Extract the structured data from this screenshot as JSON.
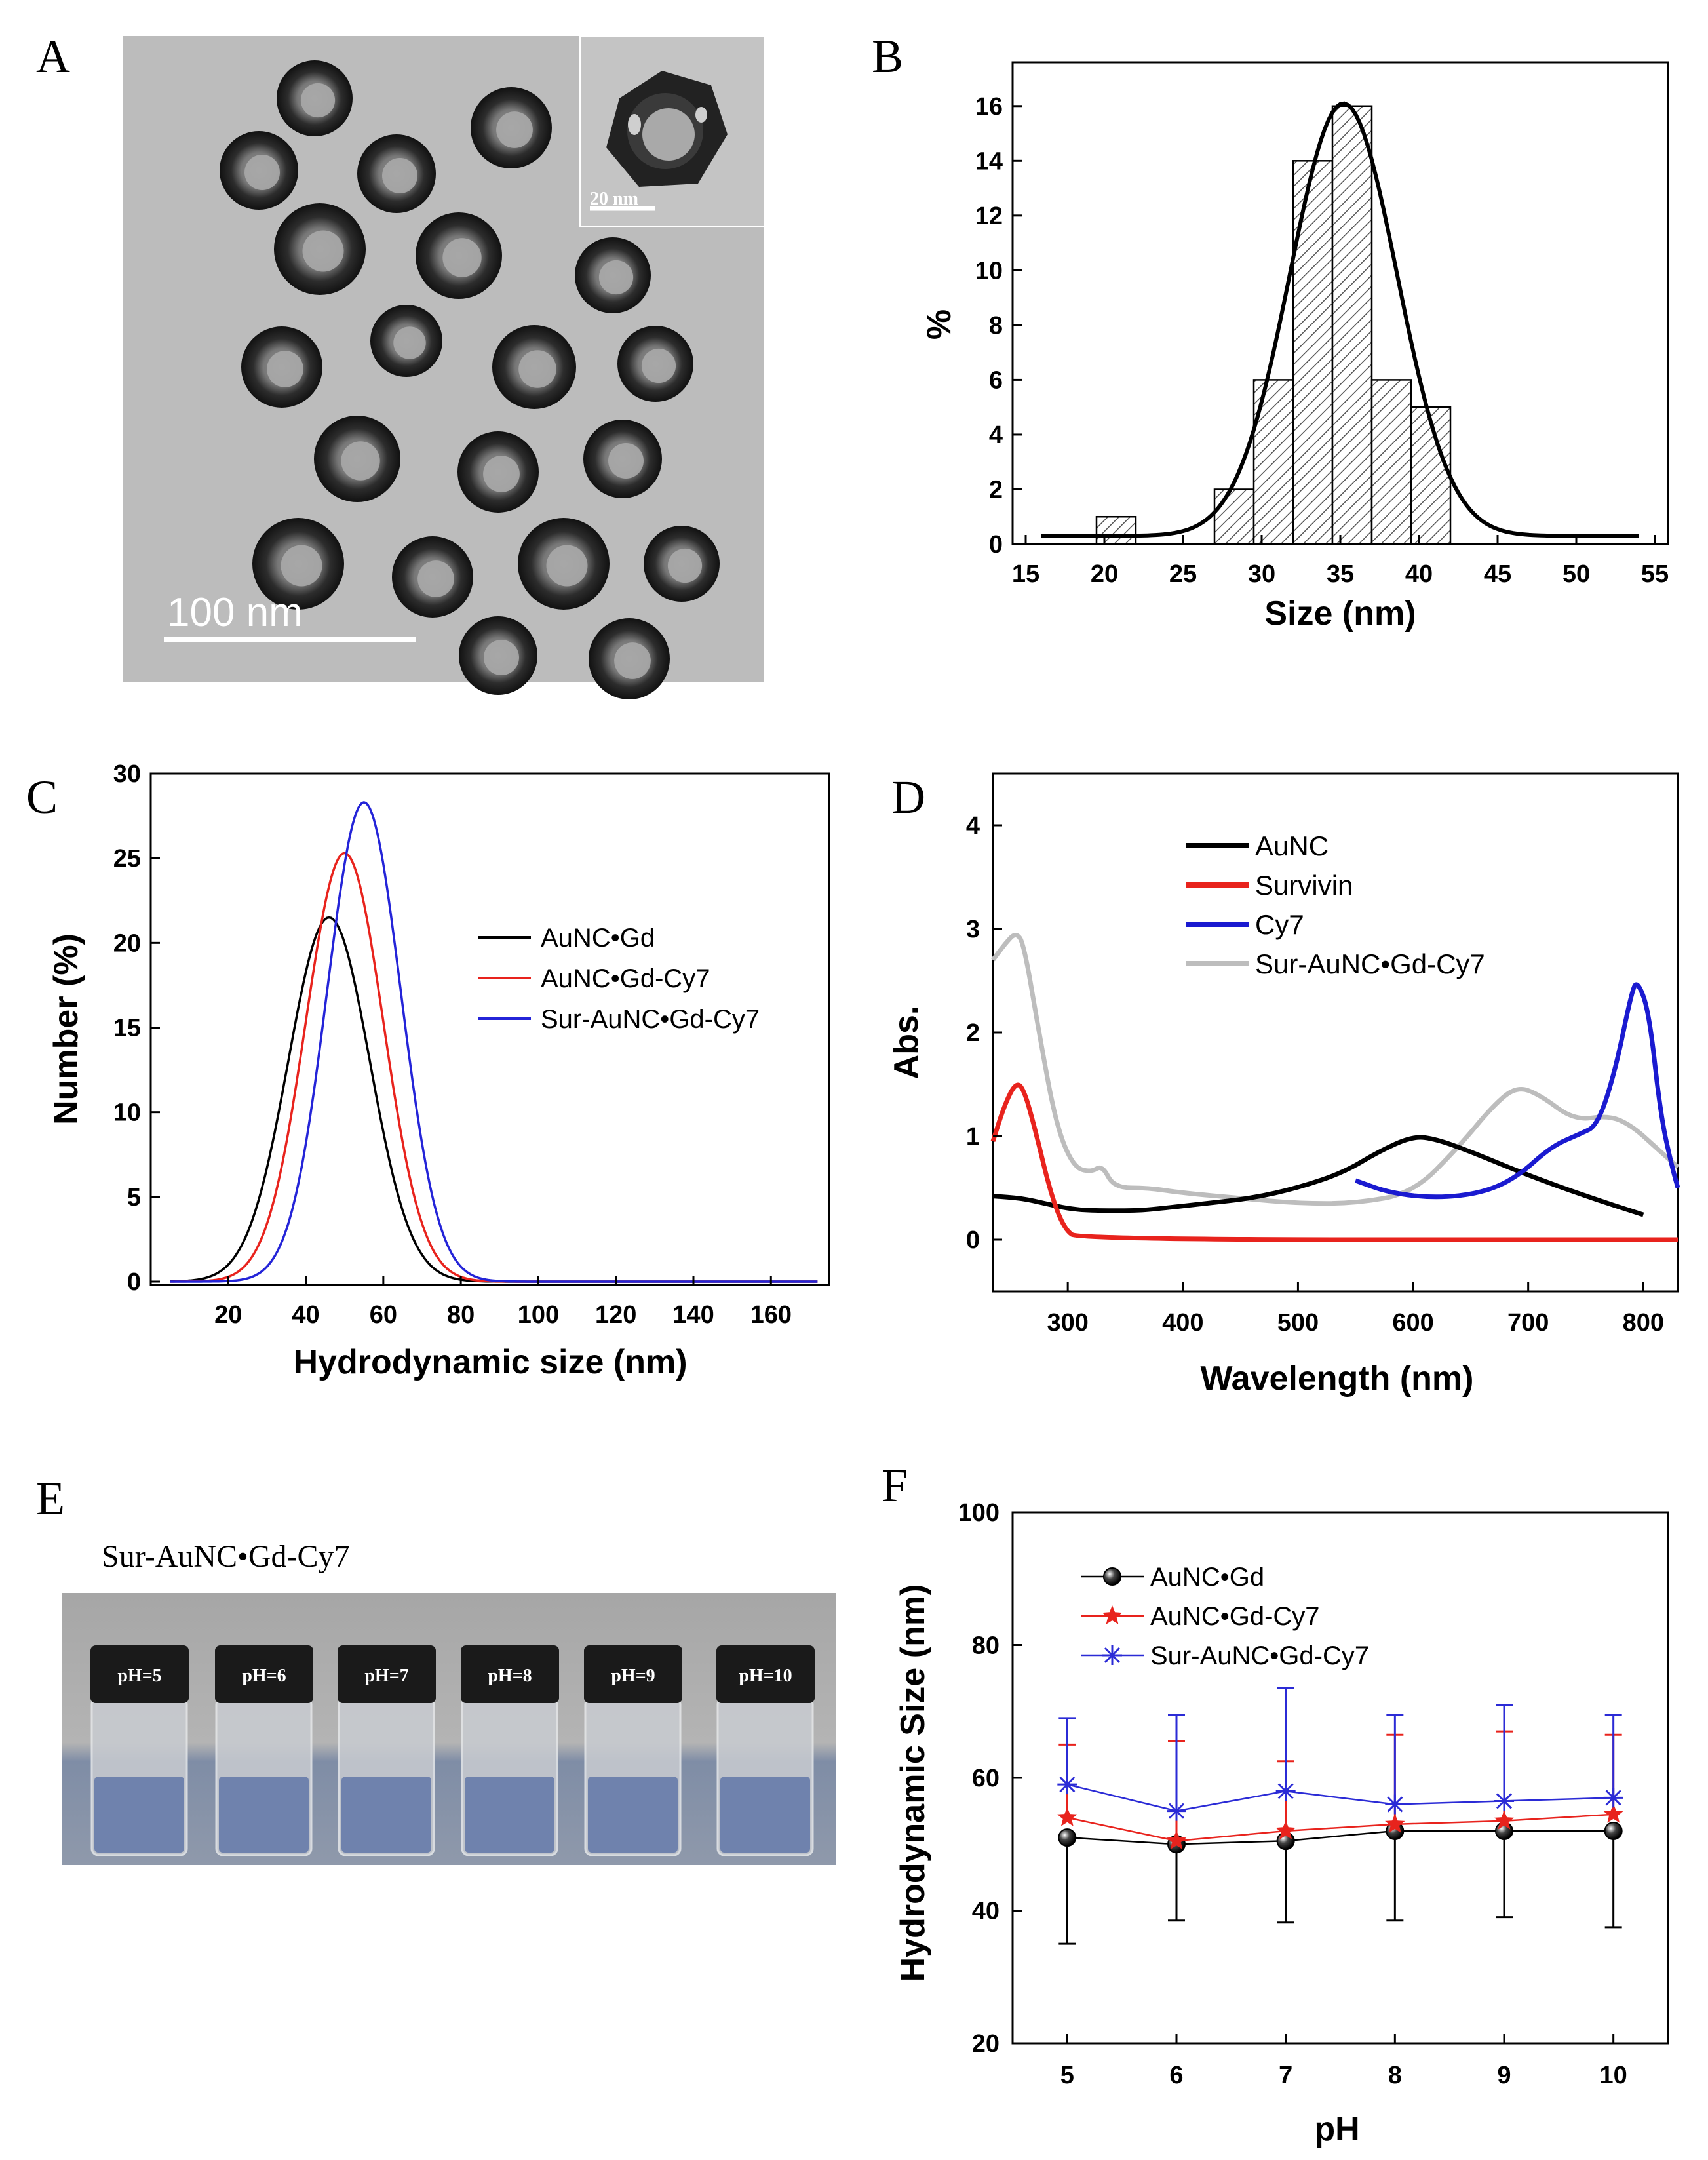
{
  "panels": {
    "A": {
      "label": "A",
      "scale_bar": "100 nm",
      "inset_scale_bar": "20 nm"
    },
    "E": {
      "label": "E",
      "title": "Sur-AuNC•Gd-Cy7",
      "vials": [
        "pH=5",
        "pH=6",
        "pH=7",
        "pH=8",
        "pH=9",
        "pH=10"
      ]
    }
  },
  "chart_data": [
    {
      "id": "B",
      "label": "B",
      "type": "bar",
      "xlabel": "Size (nm)",
      "ylabel": "%",
      "xlim": [
        15,
        55
      ],
      "ylim": [
        0,
        17
      ],
      "xticks": [
        15,
        20,
        25,
        30,
        35,
        40,
        45,
        50,
        55
      ],
      "yticks": [
        0,
        2,
        4,
        6,
        8,
        10,
        12,
        14,
        16
      ],
      "bins": [
        {
          "start": 19.5,
          "end": 22,
          "value": 1
        },
        {
          "start": 22,
          "end": 24.5,
          "value": 0
        },
        {
          "start": 24.5,
          "end": 27,
          "value": 0
        },
        {
          "start": 27,
          "end": 29.5,
          "value": 2
        },
        {
          "start": 29.5,
          "end": 32,
          "value": 6
        },
        {
          "start": 32,
          "end": 34.5,
          "value": 14
        },
        {
          "start": 34.5,
          "end": 37,
          "value": 16
        },
        {
          "start": 37,
          "end": 39.5,
          "value": 6
        },
        {
          "start": 39.5,
          "end": 42,
          "value": 5
        }
      ],
      "fit": {
        "type": "gaussian",
        "center": 35.2,
        "sigma": 3.4,
        "peak": 16.1,
        "baseline": 0.3,
        "xrange": [
          16,
          54
        ]
      }
    },
    {
      "id": "C",
      "label": "C",
      "type": "line",
      "xlabel": "Hydrodynamic size (nm)",
      "ylabel": "Number (%)",
      "xlim": [
        0,
        175
      ],
      "ylim": [
        0,
        30
      ],
      "xticks": [
        20,
        40,
        60,
        80,
        100,
        120,
        140,
        160
      ],
      "yticks": [
        0,
        5,
        10,
        15,
        20,
        25,
        30
      ],
      "series": [
        {
          "name": "AuNC•Gd",
          "color": "#000000",
          "center": 46,
          "sigma": 10.5,
          "peak": 21.5
        },
        {
          "name": "AuNC•Gd-Cy7",
          "color": "#e8231d",
          "center": 50,
          "sigma": 10,
          "peak": 25.3
        },
        {
          "name": "Sur-AuNC•Gd-Cy7",
          "color": "#2424d8",
          "center": 55,
          "sigma": 9.5,
          "peak": 28.3
        }
      ]
    },
    {
      "id": "D",
      "label": "D",
      "type": "line",
      "xlabel": "Wavelength (nm)",
      "ylabel": "Abs.",
      "xlim": [
        235,
        830
      ],
      "ylim": [
        -0.5,
        4.5
      ],
      "xticks": [
        300,
        400,
        500,
        600,
        700,
        800
      ],
      "yticks": [
        0,
        1,
        2,
        3,
        4
      ],
      "series": [
        {
          "name": "AuNC",
          "color": "#000000",
          "points": [
            [
              235,
              0.42
            ],
            [
              260,
              0.4
            ],
            [
              280,
              0.35
            ],
            [
              300,
              0.3
            ],
            [
              320,
              0.28
            ],
            [
              360,
              0.28
            ],
            [
              380,
              0.3
            ],
            [
              420,
              0.35
            ],
            [
              460,
              0.4
            ],
            [
              500,
              0.5
            ],
            [
              540,
              0.65
            ],
            [
              570,
              0.85
            ],
            [
              600,
              1.0
            ],
            [
              620,
              0.97
            ],
            [
              650,
              0.85
            ],
            [
              700,
              0.62
            ],
            [
              750,
              0.42
            ],
            [
              800,
              0.24
            ]
          ]
        },
        {
          "name": "Survivin",
          "color": "#e8231d",
          "points": [
            [
              235,
              0.95
            ],
            [
              245,
              1.3
            ],
            [
              255,
              1.52
            ],
            [
              262,
              1.45
            ],
            [
              272,
              1.05
            ],
            [
              285,
              0.45
            ],
            [
              297,
              0.1
            ],
            [
              310,
              0.0
            ],
            [
              830,
              0.0
            ]
          ]
        },
        {
          "name": "Cy7",
          "color": "#1a1ad0",
          "points": [
            [
              550,
              0.57
            ],
            [
              580,
              0.45
            ],
            [
              620,
              0.4
            ],
            [
              660,
              0.45
            ],
            [
              690,
              0.6
            ],
            [
              720,
              0.9
            ],
            [
              745,
              1.02
            ],
            [
              760,
              1.1
            ],
            [
              775,
              1.6
            ],
            [
              790,
              2.4
            ],
            [
              795,
              2.5
            ],
            [
              805,
              2.2
            ],
            [
              815,
              1.2
            ],
            [
              825,
              0.7
            ],
            [
              830,
              0.5
            ]
          ]
        },
        {
          "name": "Sur-AuNC•Gd-Cy7",
          "color": "#bdbdbd",
          "points": [
            [
              235,
              2.7
            ],
            [
              245,
              2.85
            ],
            [
              255,
              2.97
            ],
            [
              262,
              2.85
            ],
            [
              275,
              2.0
            ],
            [
              290,
              1.1
            ],
            [
              305,
              0.7
            ],
            [
              320,
              0.65
            ],
            [
              330,
              0.72
            ],
            [
              340,
              0.5
            ],
            [
              370,
              0.5
            ],
            [
              400,
              0.45
            ],
            [
              450,
              0.4
            ],
            [
              500,
              0.35
            ],
            [
              550,
              0.35
            ],
            [
              600,
              0.45
            ],
            [
              640,
              0.9
            ],
            [
              670,
              1.3
            ],
            [
              690,
              1.48
            ],
            [
              710,
              1.4
            ],
            [
              740,
              1.15
            ],
            [
              770,
              1.2
            ],
            [
              790,
              1.1
            ],
            [
              810,
              0.9
            ],
            [
              830,
              0.7
            ]
          ]
        }
      ]
    },
    {
      "id": "F",
      "label": "F",
      "type": "line",
      "xlabel": "pH",
      "ylabel": "Hydrodynamic Size (nm)",
      "xlim": [
        4.5,
        10.5
      ],
      "ylim": [
        20,
        100
      ],
      "xticks": [
        5,
        6,
        7,
        8,
        9,
        10
      ],
      "yticks": [
        20,
        40,
        60,
        80,
        100
      ],
      "x": [
        5,
        6,
        7,
        8,
        9,
        10
      ],
      "series": [
        {
          "name": "AuNC•Gd",
          "color": "#000000",
          "marker": "ball",
          "values": [
            51,
            50,
            50.5,
            52,
            52,
            52
          ],
          "err_low": [
            35,
            38.5,
            38.2,
            38.5,
            39,
            37.5
          ]
        },
        {
          "name": "AuNC•Gd-Cy7",
          "color": "#e8231d",
          "marker": "star",
          "values": [
            54,
            50.5,
            52,
            53,
            53.5,
            54.5
          ],
          "err_high": [
            65,
            65.5,
            62.5,
            66.5,
            67,
            66.5
          ]
        },
        {
          "name": "Sur-AuNC•Gd-Cy7",
          "color": "#2b2bd6",
          "marker": "asterisk",
          "values": [
            59,
            55,
            58,
            56,
            56.5,
            57
          ],
          "err_high": [
            69,
            69.5,
            73.5,
            69.5,
            71,
            69.5
          ]
        }
      ]
    }
  ]
}
